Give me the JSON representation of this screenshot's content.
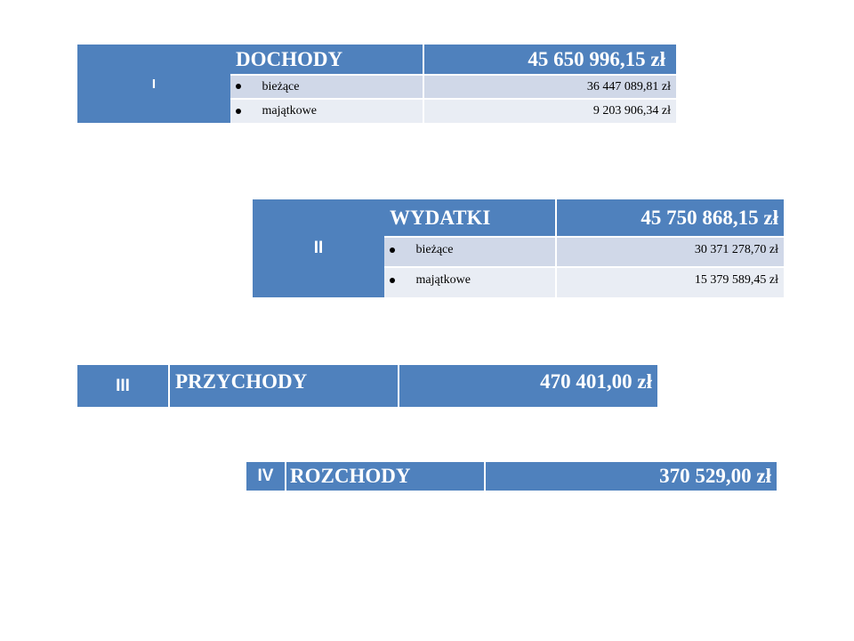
{
  "sections": {
    "dochody": {
      "numeral": "I",
      "title": "DOCHODY",
      "total": "45 650 996,15 zł",
      "items": [
        {
          "label": "bieżące",
          "amount": "36 447 089,81 zł"
        },
        {
          "label": "majątkowe",
          "amount": "9 203 906,34 zł"
        }
      ]
    },
    "wydatki": {
      "numeral": "II",
      "title": "WYDATKI",
      "total": "45 750 868,15 zł",
      "items": [
        {
          "label": "bieżące",
          "amount": "30 371 278,70 zł"
        },
        {
          "label": "majątkowe",
          "amount": "15 379 589,45 zł"
        }
      ]
    },
    "przychody": {
      "numeral": "III",
      "title": "PRZYCHODY",
      "total": "470 401,00 zł"
    },
    "rozchody": {
      "numeral": "IV",
      "title": "ROZCHODY",
      "total": "370 529,00 zł"
    }
  },
  "colors": {
    "header_blue": "#4f81bd",
    "row_shade_1": "#d0d8e8",
    "row_shade_2": "#e9edf4"
  },
  "icons": {
    "list_bullet": "bullet-icon"
  }
}
